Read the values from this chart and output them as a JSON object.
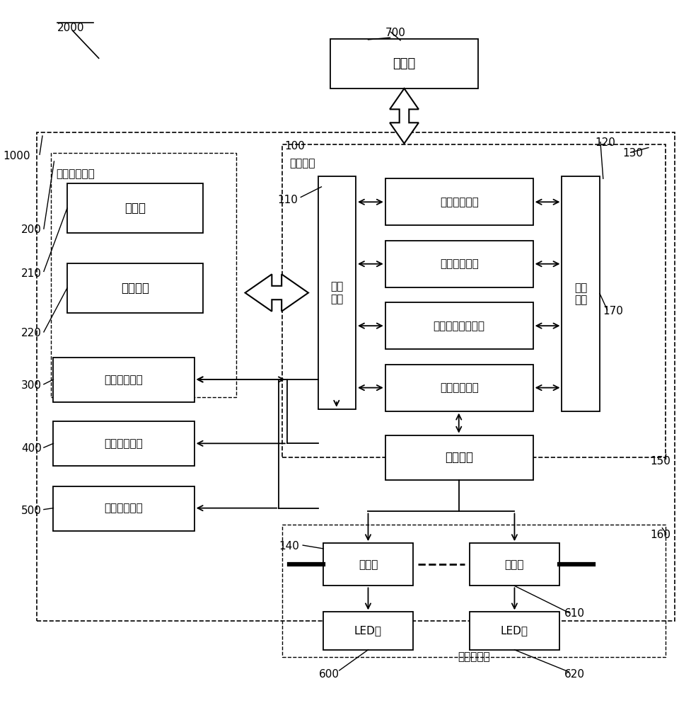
{
  "bg": "#ffffff",
  "server_text": "服务器",
  "user_unit_text": "用户接口单元",
  "host_unit_text": "主机单元",
  "display_text": "显示屏",
  "panel_text": "操作面板",
  "input_text": "输入\n模块",
  "color_sensor_text": "光色传感单元",
  "image_cap_text": "图像采集单元",
  "body_det_text": "人体检测单元",
  "color_proc_text": "光色处理模块",
  "image_proc_text": "图像处理模块",
  "light_opt_text": "照明优化处理模块",
  "dim_map_text": "调光映射模块",
  "storage_text": "存储\n模块",
  "output_text": "输出模块",
  "driver_text": "驱动器",
  "led_text": "LED灯",
  "dim_group_text": "可调光灯组",
  "ref_2000": "2000",
  "ref_700": "700",
  "ref_1000": "1000",
  "ref_100": "100",
  "ref_120": "120",
  "ref_130": "130",
  "ref_110": "110",
  "ref_140": "140",
  "ref_150": "150",
  "ref_160": "160",
  "ref_170": "170",
  "ref_200": "200",
  "ref_210": "210",
  "ref_220": "220",
  "ref_300": "300",
  "ref_400": "400",
  "ref_500": "500",
  "ref_600": "600",
  "ref_610": "610",
  "ref_620": "620"
}
